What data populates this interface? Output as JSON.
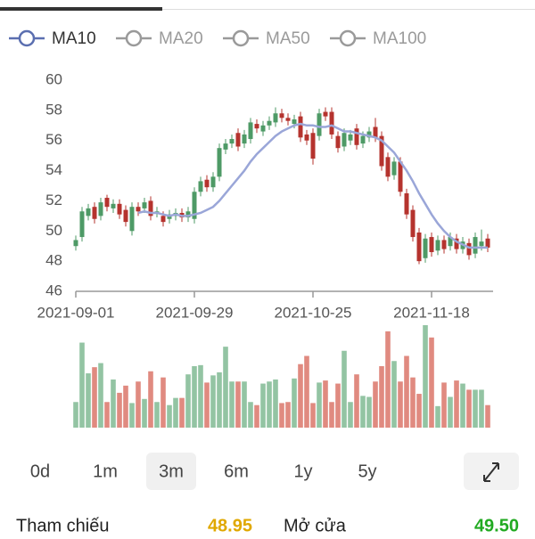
{
  "legend": [
    "MA10",
    "MA20",
    "MA50",
    "MA100"
  ],
  "chart_data": {
    "type": "candlestick",
    "categories": [
      "2021-09-01",
      null,
      null,
      null,
      null,
      null,
      null,
      null,
      null,
      null,
      null,
      null,
      null,
      null,
      null,
      null,
      null,
      null,
      null,
      "2021-09-29",
      null,
      null,
      null,
      null,
      null,
      null,
      null,
      null,
      null,
      null,
      null,
      null,
      null,
      null,
      null,
      null,
      null,
      null,
      "2021-10-25",
      null,
      null,
      null,
      null,
      null,
      null,
      null,
      null,
      null,
      null,
      null,
      null,
      null,
      null,
      null,
      null,
      null,
      null,
      "2021-11-18",
      null,
      null,
      null,
      null,
      null,
      null,
      null,
      null,
      null
    ],
    "open": [
      49.0,
      49.6,
      51.0,
      51.6,
      51.0,
      52.2,
      51.5,
      51.8,
      51.4,
      50.0,
      51.6,
      51.5,
      52.0,
      51.2,
      51.0,
      50.8,
      51.0,
      51.2,
      50.9,
      50.8,
      52.6,
      53.4,
      52.9,
      53.6,
      55.4,
      55.8,
      56.5,
      55.8,
      56.1,
      57.1,
      56.6,
      57.0,
      57.2,
      57.8,
      57.5,
      57.1,
      57.6,
      56.4,
      56.5,
      56.3,
      57.9,
      57.9,
      56.3,
      55.6,
      56.0,
      56.8,
      55.8,
      56.2,
      56.9,
      56.3,
      54.9,
      53.7,
      54.6,
      52.5,
      51.4,
      49.9,
      48.2,
      49.6,
      48.7,
      49.4,
      49.0,
      49.5,
      48.8,
      49.2,
      48.5,
      49.0,
      49.5
    ],
    "close": [
      49.4,
      51.3,
      51.5,
      50.8,
      51.9,
      51.6,
      51.8,
      51.1,
      50.6,
      51.6,
      51.3,
      51.9,
      51.0,
      51.3,
      50.6,
      51.1,
      51.2,
      50.9,
      51.3,
      52.6,
      53.3,
      52.9,
      53.6,
      55.5,
      55.8,
      56.1,
      55.6,
      56.4,
      57.2,
      56.8,
      57.0,
      57.3,
      57.8,
      57.5,
      57.3,
      57.4,
      56.2,
      56.0,
      54.8,
      57.8,
      57.6,
      56.4,
      55.5,
      56.5,
      56.4,
      55.7,
      56.3,
      56.6,
      56.2,
      54.3,
      53.6,
      54.6,
      52.6,
      51.1,
      49.6,
      48.0,
      49.5,
      48.6,
      49.4,
      48.8,
      49.6,
      48.8,
      49.3,
      48.4,
      49.6,
      49.3,
      48.9
    ],
    "high": [
      49.7,
      51.6,
      51.8,
      51.9,
      52.2,
      52.4,
      52.1,
      52.1,
      51.7,
      51.9,
      51.9,
      52.2,
      52.3,
      51.6,
      51.3,
      51.4,
      51.5,
      51.5,
      51.6,
      52.9,
      53.6,
      53.7,
      53.9,
      55.8,
      56.1,
      56.4,
      56.8,
      56.7,
      57.5,
      57.4,
      57.3,
      57.6,
      58.2,
      58.1,
      57.8,
      57.7,
      57.9,
      56.7,
      56.8,
      58.1,
      58.2,
      58.2,
      56.6,
      56.8,
      56.7,
      57.1,
      56.6,
      56.9,
      57.5,
      56.6,
      55.2,
      54.9,
      54.9,
      52.8,
      51.7,
      50.2,
      49.8,
      49.9,
      49.7,
      49.7,
      49.9,
      49.8,
      49.6,
      49.5,
      49.9,
      50.1,
      49.8
    ],
    "low": [
      48.7,
      49.3,
      50.7,
      50.5,
      50.7,
      51.3,
      51.2,
      50.8,
      50.3,
      49.7,
      51.0,
      51.2,
      50.7,
      50.9,
      50.3,
      50.5,
      50.7,
      50.6,
      50.6,
      50.5,
      52.3,
      52.6,
      52.6,
      53.3,
      55.1,
      55.5,
      55.3,
      55.5,
      55.8,
      56.5,
      56.3,
      56.7,
      56.9,
      57.2,
      57.0,
      56.8,
      55.9,
      55.7,
      54.4,
      56.0,
      57.3,
      56.1,
      55.2,
      55.3,
      55.7,
      55.4,
      55.5,
      55.9,
      55.9,
      54.0,
      53.3,
      53.4,
      52.3,
      50.8,
      49.3,
      47.8,
      47.9,
      48.3,
      48.4,
      48.5,
      48.7,
      48.5,
      48.5,
      48.1,
      48.2,
      48.7,
      48.6
    ],
    "up_color": "#4e9a66",
    "down_color": "#b5332e",
    "ma": {
      "name": "MA10",
      "color": "#9aa6d8",
      "values": [
        null,
        null,
        null,
        null,
        null,
        null,
        null,
        null,
        null,
        null,
        51.2,
        51.3,
        51.2,
        51.2,
        51.1,
        51.0,
        51.1,
        51.0,
        51.0,
        51.1,
        51.2,
        51.4,
        51.6,
        52.0,
        52.5,
        53.0,
        53.5,
        54.0,
        54.6,
        55.1,
        55.5,
        55.9,
        56.3,
        56.6,
        56.8,
        57.0,
        57.1,
        57.0,
        57.0,
        56.9,
        56.9,
        57.0,
        56.8,
        56.6,
        56.6,
        56.5,
        56.4,
        56.3,
        56.2,
        56.0,
        55.6,
        55.2,
        54.6,
        54.0,
        53.3,
        52.5,
        51.8,
        51.1,
        50.5,
        50.0,
        49.6,
        49.3,
        49.1,
        48.9,
        48.9,
        48.9,
        48.9
      ]
    },
    "volume": {
      "up_color": "#93c4a3",
      "down_color": "#e08a80",
      "values": [
        25,
        83,
        53,
        59,
        63,
        25,
        47,
        34,
        41,
        24,
        45,
        28,
        55,
        25,
        49,
        22,
        29,
        29,
        52,
        60,
        61,
        44,
        51,
        54,
        79,
        45,
        45,
        45,
        25,
        22,
        43,
        45,
        47,
        24,
        25,
        48,
        62,
        70,
        24,
        44,
        46,
        25,
        43,
        75,
        25,
        52,
        31,
        30,
        45,
        60,
        94,
        65,
        45,
        70,
        49,
        33,
        100,
        88,
        21,
        44,
        30,
        46,
        43,
        37,
        37,
        37,
        22
      ]
    },
    "ylim": [
      46,
      60
    ],
    "yticks": [
      46,
      48,
      50,
      52,
      54,
      56,
      58,
      60
    ]
  },
  "ranges": [
    "0d",
    "1m",
    "3m",
    "6m",
    "1y",
    "5y"
  ],
  "selected_range": "3m",
  "quote": {
    "reference_label": "Tham chiếu",
    "reference": "48.95",
    "open_label": "Mở cửa",
    "open": "49.50"
  }
}
